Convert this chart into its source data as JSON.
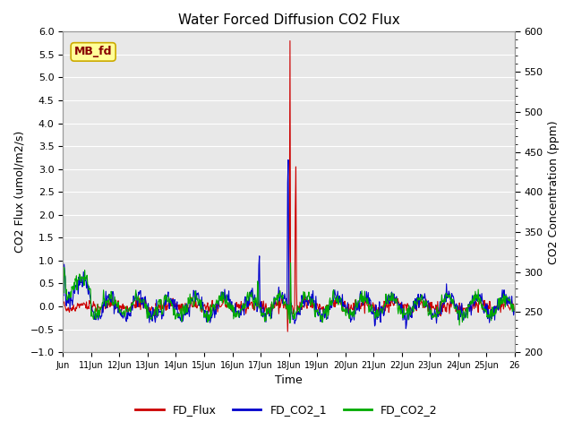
{
  "title": "Water Forced Diffusion CO2 Flux",
  "ylabel_left": "CO2 Flux (umol/m2/s)",
  "ylabel_right": "CO2 Concentration (ppm)",
  "xlabel": "Time",
  "ylim_left": [
    -1.0,
    6.0
  ],
  "ylim_right": [
    200,
    600
  ],
  "x_tick_labels": [
    "Jun",
    "11Jun",
    "12Jun",
    "13Jun",
    "14Jun",
    "15Jun",
    "16Jun",
    "17Jun",
    "18Jun",
    "19Jun",
    "20Jun",
    "21Jun",
    "22Jun",
    "23Jun",
    "24Jun",
    "25Jun",
    "26"
  ],
  "color_flux": "#cc0000",
  "color_co2_1": "#0000cc",
  "color_co2_2": "#00aa00",
  "legend_labels": [
    "FD_Flux",
    "FD_CO2_1",
    "FD_CO2_2"
  ],
  "annotation_text": "MB_fd",
  "annotation_bg": "#ffff99",
  "annotation_border": "#ccaa00",
  "bg_color": "#e8e8e8",
  "grid_color": "#ffffff",
  "linewidth": 0.8,
  "n_days": 16,
  "n_per_day": 48
}
